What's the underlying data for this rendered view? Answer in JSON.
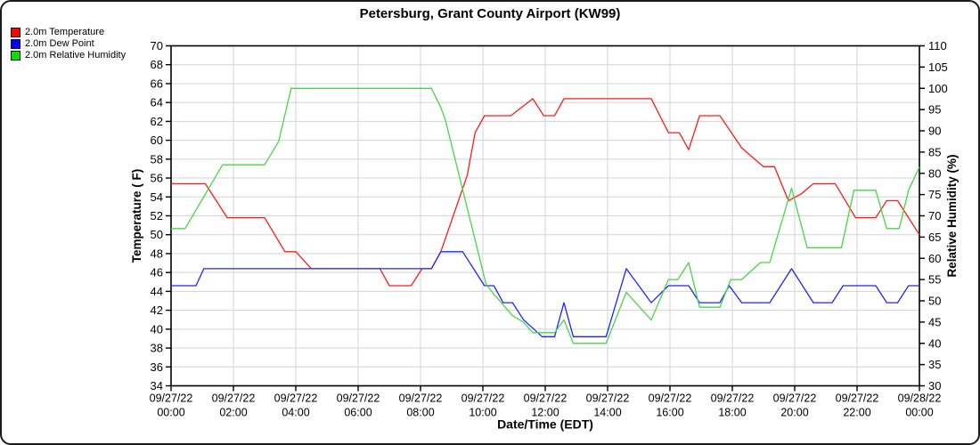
{
  "window": {
    "background": "#ffffff",
    "border_color": "#1a1a1a"
  },
  "chart_data": {
    "type": "line",
    "title": "Petersburg, Grant County Airport (KW99)",
    "xlabel": "Date/Time (EDT)",
    "ylabel_left": "Temperature ( F)",
    "ylabel_right": "Relative Humidity (%)",
    "grid": {
      "color": "#d3d3d3",
      "on": true
    },
    "legend_position": "top-left",
    "left_axis": {
      "min": 34,
      "max": 70,
      "step": 2
    },
    "right_axis": {
      "min": 30,
      "max": 110,
      "step": 5
    },
    "x_axis": {
      "min_hours": 0,
      "max_hours": 24,
      "step_hours": 2,
      "tick_labels": [
        {
          "date": "09/27/22",
          "time": "00:00"
        },
        {
          "date": "09/27/22",
          "time": "02:00"
        },
        {
          "date": "09/27/22",
          "time": "04:00"
        },
        {
          "date": "09/27/22",
          "time": "06:00"
        },
        {
          "date": "09/27/22",
          "time": "08:00"
        },
        {
          "date": "09/27/22",
          "time": "10:00"
        },
        {
          "date": "09/27/22",
          "time": "12:00"
        },
        {
          "date": "09/27/22",
          "time": "14:00"
        },
        {
          "date": "09/27/22",
          "time": "16:00"
        },
        {
          "date": "09/27/22",
          "time": "18:00"
        },
        {
          "date": "09/27/22",
          "time": "20:00"
        },
        {
          "date": "09/27/22",
          "time": "22:00"
        },
        {
          "date": "09/28/22",
          "time": "00:00"
        }
      ]
    },
    "series": [
      {
        "name": "2.0m Temperature",
        "axis": "left",
        "swatch_color": "#ff0000",
        "line_color": "#ff1a1a",
        "points": [
          [
            0,
            55.4
          ],
          [
            1.1,
            55.4
          ],
          [
            1.8,
            51.8
          ],
          [
            3.0,
            51.8
          ],
          [
            3.65,
            48.2
          ],
          [
            4.0,
            48.2
          ],
          [
            4.5,
            46.4
          ],
          [
            6.7,
            46.4
          ],
          [
            7.0,
            44.6
          ],
          [
            7.7,
            44.6
          ],
          [
            8.05,
            46.4
          ],
          [
            8.35,
            46.4
          ],
          [
            8.65,
            48.2
          ],
          [
            9.5,
            56.3
          ],
          [
            9.75,
            60.8
          ],
          [
            10.05,
            62.6
          ],
          [
            10.9,
            62.6
          ],
          [
            11.6,
            64.4
          ],
          [
            11.95,
            62.6
          ],
          [
            12.3,
            62.6
          ],
          [
            12.6,
            64.4
          ],
          [
            15.4,
            64.4
          ],
          [
            15.95,
            60.8
          ],
          [
            16.3,
            60.8
          ],
          [
            16.6,
            59.0
          ],
          [
            16.95,
            62.6
          ],
          [
            17.6,
            62.6
          ],
          [
            18.3,
            59.2
          ],
          [
            18.65,
            58.2
          ],
          [
            19.0,
            57.2
          ],
          [
            19.35,
            57.2
          ],
          [
            19.8,
            53.6
          ],
          [
            20.2,
            54.3
          ],
          [
            20.6,
            55.4
          ],
          [
            21.3,
            55.4
          ],
          [
            21.95,
            51.8
          ],
          [
            22.6,
            51.8
          ],
          [
            22.95,
            53.6
          ],
          [
            23.3,
            53.6
          ],
          [
            23.65,
            51.8
          ],
          [
            24,
            50.0
          ]
        ]
      },
      {
        "name": "2.0m Dew Point",
        "axis": "left",
        "swatch_color": "#0000ff",
        "line_color": "#2222ff",
        "points": [
          [
            0,
            44.6
          ],
          [
            0.8,
            44.6
          ],
          [
            1.05,
            46.4
          ],
          [
            8.35,
            46.4
          ],
          [
            8.65,
            48.2
          ],
          [
            9.35,
            48.2
          ],
          [
            10.05,
            44.6
          ],
          [
            10.35,
            44.6
          ],
          [
            10.65,
            42.8
          ],
          [
            10.95,
            42.8
          ],
          [
            11.3,
            41.0
          ],
          [
            11.9,
            39.2
          ],
          [
            12.3,
            39.2
          ],
          [
            12.6,
            42.8
          ],
          [
            12.9,
            39.2
          ],
          [
            13.95,
            39.2
          ],
          [
            14.6,
            46.4
          ],
          [
            15.4,
            42.8
          ],
          [
            15.95,
            44.6
          ],
          [
            16.6,
            44.6
          ],
          [
            16.95,
            42.8
          ],
          [
            17.6,
            42.8
          ],
          [
            17.9,
            44.6
          ],
          [
            18.3,
            42.8
          ],
          [
            19.2,
            42.8
          ],
          [
            19.9,
            46.4
          ],
          [
            20.6,
            42.8
          ],
          [
            21.2,
            42.8
          ],
          [
            21.55,
            44.6
          ],
          [
            22.6,
            44.6
          ],
          [
            22.95,
            42.8
          ],
          [
            23.3,
            42.8
          ],
          [
            23.65,
            44.6
          ],
          [
            24,
            44.6
          ]
        ]
      },
      {
        "name": "2.0m Relative Humidity",
        "axis": "right",
        "swatch_color": "#00e400",
        "line_color": "#46d746",
        "points": [
          [
            0,
            67
          ],
          [
            0.45,
            67
          ],
          [
            1.65,
            82
          ],
          [
            3.0,
            82
          ],
          [
            3.45,
            87.5
          ],
          [
            3.85,
            100
          ],
          [
            8.35,
            100
          ],
          [
            8.65,
            95.5
          ],
          [
            8.8,
            92.5
          ],
          [
            10.1,
            54
          ],
          [
            10.3,
            52
          ],
          [
            10.6,
            49.5
          ],
          [
            10.95,
            46.5
          ],
          [
            11.3,
            45
          ],
          [
            11.6,
            42.5
          ],
          [
            12.3,
            42.5
          ],
          [
            12.6,
            45.5
          ],
          [
            12.9,
            40
          ],
          [
            13.95,
            40
          ],
          [
            14.6,
            52
          ],
          [
            15.4,
            45.5
          ],
          [
            15.95,
            55
          ],
          [
            16.25,
            55
          ],
          [
            16.6,
            59
          ],
          [
            16.95,
            48.5
          ],
          [
            17.6,
            48.5
          ],
          [
            17.95,
            55
          ],
          [
            18.3,
            55
          ],
          [
            18.9,
            59
          ],
          [
            19.2,
            59
          ],
          [
            19.9,
            76.5
          ],
          [
            20.4,
            62.5
          ],
          [
            21.5,
            62.5
          ],
          [
            21.9,
            76
          ],
          [
            22.6,
            76
          ],
          [
            22.95,
            67
          ],
          [
            23.35,
            67
          ],
          [
            23.65,
            76
          ],
          [
            24,
            81.5
          ]
        ]
      }
    ]
  }
}
